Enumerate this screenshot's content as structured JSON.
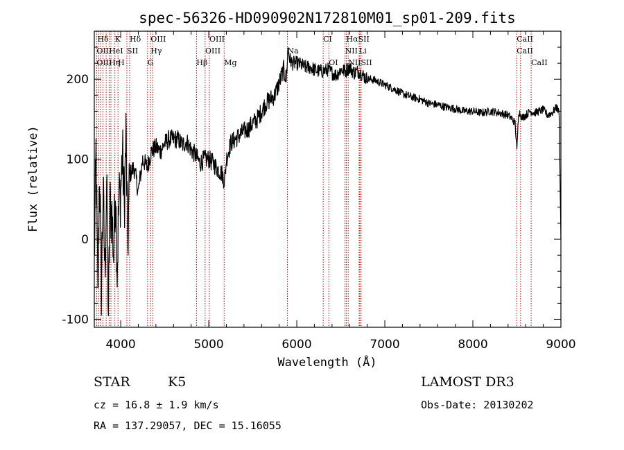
{
  "chart_data": {
    "type": "line",
    "title": "spec-56326-HD090902N172810M01_sp01-209.fits",
    "xlabel": "Wavelength (Å)",
    "ylabel": "Flux (relative)",
    "xlim": [
      3700,
      9000
    ],
    "ylim": [
      -110,
      260
    ],
    "x_ticks": [
      4000,
      5000,
      6000,
      7000,
      8000,
      9000
    ],
    "y_ticks": [
      -100,
      0,
      100,
      200
    ],
    "grid": false,
    "series": [
      {
        "name": "spectrum",
        "x": [
          3700,
          3720,
          3740,
          3760,
          3780,
          3800,
          3820,
          3840,
          3860,
          3880,
          3900,
          3920,
          3940,
          3960,
          3980,
          4000,
          4020,
          4040,
          4060,
          4080,
          4100,
          4150,
          4200,
          4250,
          4300,
          4350,
          4400,
          4450,
          4500,
          4550,
          4600,
          4650,
          4700,
          4750,
          4800,
          4850,
          4900,
          4950,
          5000,
          5050,
          5100,
          5150,
          5180,
          5200,
          5250,
          5300,
          5350,
          5400,
          5450,
          5500,
          5550,
          5600,
          5650,
          5700,
          5750,
          5800,
          5850,
          5880,
          5900,
          5920,
          5950,
          6000,
          6050,
          6100,
          6150,
          6200,
          6250,
          6300,
          6350,
          6400,
          6450,
          6500,
          6550,
          6600,
          6650,
          6700,
          6750,
          6800,
          6850,
          6900,
          7000,
          7100,
          7200,
          7300,
          7400,
          7500,
          7600,
          7700,
          7800,
          7900,
          8000,
          8100,
          8200,
          8300,
          8400,
          8450,
          8480,
          8500,
          8520,
          8560,
          8600,
          8650,
          8700,
          8750,
          8800,
          8850,
          8900,
          8950,
          8980,
          9000
        ],
        "y": [
          -30,
          110,
          -80,
          90,
          -60,
          60,
          -40,
          70,
          -90,
          40,
          30,
          -20,
          70,
          -40,
          50,
          60,
          110,
          40,
          130,
          -10,
          80,
          90,
          60,
          100,
          90,
          110,
          115,
          110,
          120,
          125,
          125,
          125,
          118,
          122,
          112,
          105,
          95,
          100,
          100,
          95,
          88,
          82,
          72,
          100,
          120,
          125,
          130,
          135,
          138,
          145,
          150,
          160,
          170,
          175,
          180,
          195,
          212,
          200,
          238,
          225,
          220,
          220,
          218,
          215,
          215,
          212,
          210,
          210,
          212,
          208,
          205,
          212,
          210,
          215,
          208,
          210,
          205,
          200,
          200,
          198,
          193,
          188,
          182,
          178,
          175,
          170,
          168,
          165,
          163,
          160,
          160,
          158,
          160,
          158,
          155,
          150,
          145,
          110,
          160,
          152,
          155,
          160,
          158,
          160,
          162,
          155,
          158,
          165,
          158,
          0
        ],
        "color": "#000000"
      }
    ],
    "line_markers": [
      {
        "label": "Hδ",
        "x": 3735,
        "row": 1
      },
      {
        "label": "K",
        "x": 3934,
        "row": 1
      },
      {
        "label": "Hδ",
        "x": 4102,
        "row": 1
      },
      {
        "label": "OIII",
        "x": 4340,
        "row": 1
      },
      {
        "label": "OIII",
        "x": 5007,
        "row": 1
      },
      {
        "label": "CI",
        "x": 6300,
        "row": 1
      },
      {
        "label": "HαSII",
        "x": 6563,
        "row": 1
      },
      {
        "label": "CaII",
        "x": 8498,
        "row": 1
      },
      {
        "label": "OIIHeI",
        "x": 3727,
        "row": 2
      },
      {
        "label": "SII",
        "x": 4070,
        "row": 2
      },
      {
        "label": "Hγ",
        "x": 4340,
        "row": 2
      },
      {
        "label": "OIII",
        "x": 4960,
        "row": 2
      },
      {
        "label": "Na",
        "x": 5893,
        "row": 2
      },
      {
        "label": "NII",
        "x": 6548,
        "row": 2
      },
      {
        "label": "Li",
        "x": 6708,
        "row": 2
      },
      {
        "label": "CaII",
        "x": 8498,
        "row": 2
      },
      {
        "label": "OIIHη",
        "x": 3727,
        "row": 3
      },
      {
        "label": "H",
        "x": 3969,
        "row": 3
      },
      {
        "label": "G",
        "x": 4305,
        "row": 3
      },
      {
        "label": "Hβ",
        "x": 4861,
        "row": 3
      },
      {
        "label": "Mg",
        "x": 5175,
        "row": 3
      },
      {
        "label": "OI",
        "x": 6364,
        "row": 3
      },
      {
        "label": "NIISII",
        "x": 6584,
        "row": 3
      },
      {
        "label": "CaII",
        "x": 8662,
        "row": 3
      }
    ],
    "marker_line_x": [
      3727,
      3750,
      3771,
      3798,
      3835,
      3869,
      3889,
      3934,
      3969,
      4070,
      4102,
      4305,
      4340,
      4363,
      4861,
      4959,
      5007,
      5175,
      5893,
      6300,
      6364,
      6548,
      6563,
      6584,
      6708,
      6717,
      6731,
      8498,
      8542,
      8662
    ]
  },
  "info": {
    "object_type": "STAR",
    "subclass": "K5",
    "survey": "LAMOST DR3",
    "redshift": "cz = 16.8 ± 1.9 km/s",
    "obs_date": "Obs-Date: 20130202",
    "coords": "RA = 137.29057, DEC =  15.16055"
  }
}
